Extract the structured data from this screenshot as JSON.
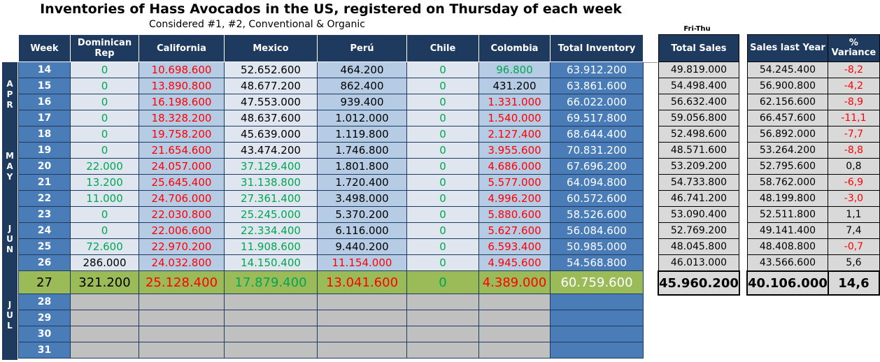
{
  "title": "Inventories of Hass Avocados in the US, registered on Thursday of each week",
  "subtitle": "Considered #1, #2, Conventional & Organic",
  "sales_period": "Fri-Thu",
  "headers": {
    "week": "Week",
    "dom": "Dominican Rep",
    "cal": "California",
    "mex": "Mexico",
    "peru": "Perú",
    "chile": "Chile",
    "col": "Colombia",
    "total": "Total Inventory",
    "sales": "Total Sales",
    "ly": "Sales last Year",
    "var": "% Variance"
  },
  "months": [
    {
      "label": "APR"
    },
    {
      "label": "MAY"
    },
    {
      "label": "JUN"
    },
    {
      "label": "JUL"
    }
  ],
  "rows": [
    {
      "week": "14",
      "dom": "0",
      "cal": "10.698.600",
      "mex": "52.652.600",
      "peru": "464.200",
      "chile": "0",
      "col": "96.800",
      "total": "63.912.200",
      "sales": "49.819.000",
      "ly": "54.245.400",
      "var": "-8,2"
    },
    {
      "week": "15",
      "dom": "0",
      "cal": "13.890.800",
      "mex": "48.677.200",
      "peru": "862.400",
      "chile": "0",
      "col": "431.200",
      "total": "63.861.600",
      "sales": "54.498.400",
      "ly": "56.900.800",
      "var": "-4,2"
    },
    {
      "week": "16",
      "dom": "0",
      "cal": "16.198.600",
      "mex": "47.553.000",
      "peru": "939.400",
      "chile": "0",
      "col": "1.331.000",
      "total": "66.022.000",
      "sales": "56.632.400",
      "ly": "62.156.600",
      "var": "-8,9"
    },
    {
      "week": "17",
      "dom": "0",
      "cal": "18.328.200",
      "mex": "48.637.600",
      "peru": "1.012.000",
      "chile": "0",
      "col": "1.540.000",
      "total": "69.517.800",
      "sales": "59.056.800",
      "ly": "66.457.600",
      "var": "-11,1"
    },
    {
      "week": "18",
      "dom": "0",
      "cal": "19.758.200",
      "mex": "45.639.000",
      "peru": "1.119.800",
      "chile": "0",
      "col": "2.127.400",
      "total": "68.644.400",
      "sales": "52.498.600",
      "ly": "56.892.000",
      "var": "-7,7"
    },
    {
      "week": "19",
      "dom": "0",
      "cal": "21.654.600",
      "mex": "43.474.200",
      "peru": "1.746.800",
      "chile": "0",
      "col": "3.955.600",
      "total": "70.831.200",
      "sales": "48.571.600",
      "ly": "53.264.200",
      "var": "-8,8"
    },
    {
      "week": "20",
      "dom": "22.000",
      "cal": "24.057.000",
      "mex": "37.129.400",
      "peru": "1.801.800",
      "chile": "0",
      "col": "4.686.000",
      "total": "67.696.200",
      "sales": "53.209.200",
      "ly": "52.795.600",
      "var": "0,8"
    },
    {
      "week": "21",
      "dom": "13.200",
      "cal": "25.645.400",
      "mex": "31.138.800",
      "peru": "1.720.400",
      "chile": "0",
      "col": "5.577.000",
      "total": "64.094.800",
      "sales": "54.733.800",
      "ly": "58.762.000",
      "var": "-6,9"
    },
    {
      "week": "22",
      "dom": "11.000",
      "cal": "24.706.000",
      "mex": "27.361.400",
      "peru": "3.498.000",
      "chile": "0",
      "col": "4.996.200",
      "total": "60.572.600",
      "sales": "46.741.200",
      "ly": "48.199.800",
      "var": "-3,0"
    },
    {
      "week": "23",
      "dom": "0",
      "cal": "22.030.800",
      "mex": "25.245.000",
      "peru": "5.370.200",
      "chile": "0",
      "col": "5.880.600",
      "total": "58.526.600",
      "sales": "53.090.400",
      "ly": "52.511.800",
      "var": "1,1"
    },
    {
      "week": "24",
      "dom": "0",
      "cal": "22.006.600",
      "mex": "22.334.400",
      "peru": "6.116.000",
      "chile": "0",
      "col": "5.627.600",
      "total": "56.084.600",
      "sales": "52.769.200",
      "ly": "49.141.400",
      "var": "7,4"
    },
    {
      "week": "25",
      "dom": "72.600",
      "cal": "22.970.200",
      "mex": "11.908.600",
      "peru": "9.440.200",
      "chile": "0",
      "col": "6.593.400",
      "total": "50.985.000",
      "sales": "48.045.800",
      "ly": "48.408.800",
      "var": "-0,7"
    },
    {
      "week": "26",
      "dom": "286.000",
      "cal": "24.032.800",
      "mex": "14.150.400",
      "peru": "11.154.000",
      "chile": "0",
      "col": "4.945.600",
      "total": "54.568.800",
      "sales": "46.013.000",
      "ly": "43.566.600",
      "var": "5,6"
    },
    {
      "week": "27",
      "dom": "321.200",
      "cal": "25.128.400",
      "mex": "17.879.400",
      "peru": "13.041.600",
      "chile": "0",
      "col": "4.389.000",
      "total": "60.759.600",
      "sales": "45.960.200",
      "ly": "40.106.000",
      "var": "14,6"
    }
  ],
  "future_weeks": [
    "28",
    "29",
    "30",
    "31"
  ],
  "colors": {
    "header": "#1f3a5f",
    "week": "#4a7cb8",
    "light": "#dfe6ef",
    "mid": "#b6cce4",
    "highlight": "#9bbb59",
    "grey": "#c0c0c0",
    "green": "#00a651",
    "red": "#ff0000"
  }
}
